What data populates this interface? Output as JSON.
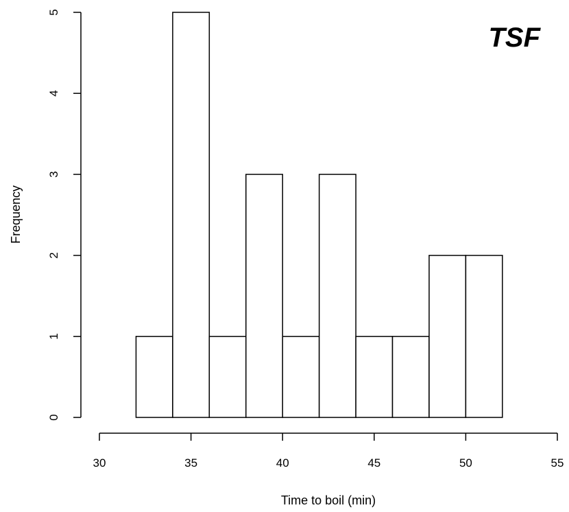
{
  "chart_data": {
    "type": "bar",
    "subtype": "histogram",
    "annotation": "TSF",
    "xlabel": "Time to boil (min)",
    "ylabel": "Frequency",
    "bins": [
      {
        "start": 32,
        "end": 34,
        "count": 1
      },
      {
        "start": 34,
        "end": 36,
        "count": 5
      },
      {
        "start": 36,
        "end": 38,
        "count": 1
      },
      {
        "start": 38,
        "end": 40,
        "count": 3
      },
      {
        "start": 40,
        "end": 42,
        "count": 1
      },
      {
        "start": 42,
        "end": 44,
        "count": 3
      },
      {
        "start": 44,
        "end": 46,
        "count": 1
      },
      {
        "start": 46,
        "end": 48,
        "count": 1
      },
      {
        "start": 48,
        "end": 50,
        "count": 2
      },
      {
        "start": 50,
        "end": 52,
        "count": 2
      }
    ],
    "xlim": [
      30,
      55
    ],
    "ylim": [
      0,
      5
    ],
    "x_ticks": [
      "30",
      "35",
      "40",
      "45",
      "50",
      "55"
    ],
    "y_ticks": [
      "0",
      "1",
      "2",
      "3",
      "4",
      "5"
    ],
    "grid": false,
    "colors": {
      "bar_fill": "#ffffff",
      "bar_stroke": "#000000"
    }
  }
}
